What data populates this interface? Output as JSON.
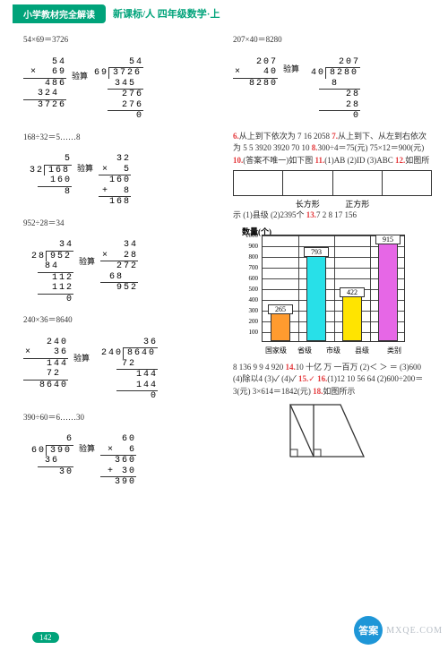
{
  "header": {
    "tab": "小学教材完全解读",
    "title": "新课标/人 四年级数学·上"
  },
  "left": {
    "p1": {
      "eq": "54×69＝3726",
      "mult": {
        "a": "54",
        "b": "69",
        "p1": "486",
        "p2": "324",
        "res": "3726"
      },
      "check_label": "验算",
      "longdiv": {
        "div": "69",
        "dvd": "3726",
        "q": "54",
        "l1": "345",
        "l2": "276",
        "l3": "276",
        "rem": "0"
      }
    },
    "p2": {
      "eq": "168÷32＝5……8",
      "longdiv": {
        "div": "32",
        "dvd": "168",
        "q": "5",
        "l1": "160",
        "rem": "8"
      },
      "check_label": "验算",
      "mult": {
        "a": "32",
        "b": "5",
        "p1": "160",
        "add": "8",
        "res": "168"
      }
    },
    "p3": {
      "eq": "952÷28＝34",
      "longdiv": {
        "div": "28",
        "dvd": "952",
        "q": "34",
        "l1": "84",
        "l2": "112",
        "l3": "112",
        "rem": "0"
      },
      "check_label": "验算",
      "mult": {
        "a": "34",
        "b": "28",
        "p1": "272",
        "p2": "68",
        "res": "952"
      }
    },
    "p4": {
      "eq": "240×36＝8640",
      "mult": {
        "a": "240",
        "b": "36",
        "p1": "144",
        "p2": "72",
        "res": "8640"
      },
      "check_label": "验算",
      "longdiv": {
        "div": "240",
        "dvd": "8640",
        "q": "36",
        "l1": "72",
        "l2": "144",
        "rem": "0"
      }
    },
    "p5": {
      "eq": "390÷60＝6……30",
      "longdiv": {
        "div": "60",
        "dvd": "390",
        "q": "6",
        "l1": "36",
        "rem": "30"
      },
      "check_label": "验算",
      "mult": {
        "a": "60",
        "b": "6",
        "p1": "360",
        "add": "30",
        "res": "390"
      }
    }
  },
  "right": {
    "p1": {
      "eq": "207×40＝8280",
      "mult": {
        "a": "207",
        "b": "40",
        "res": "8280"
      },
      "check_label": "验算",
      "longdiv": {
        "div": "40",
        "dvd": "8280",
        "q": "207",
        "l1": "8",
        "l2": "28",
        "l3": "28",
        "rem": "0"
      }
    },
    "answers1": {
      "n6": "6.",
      "t6": "从上到下依次为 7 16 2058 ",
      "n7": "7.",
      "t7": "从上到下、从左到右依次为 5 5 3920 3920 70 10 ",
      "n8": "8.",
      "t8": "300÷4＝75(元) 75×12＝900(元) ",
      "n10": "10.",
      "t10": "(答案不唯一)如下图 ",
      "n11": "11.",
      "t11": "(1)AB (2)ID (3)ABC ",
      "n12": "12.",
      "t12": "如图所"
    },
    "shape_labels": {
      "a": "长方形",
      "b": "正方形"
    },
    "answers2": {
      "prefix": "示 (1)县级 (2)2395个 ",
      "n13": "13.",
      "t13": "7 2 8 17 156"
    },
    "chart": {
      "title": "数量(个)",
      "ymax": 1000,
      "ystep": 100,
      "ytick_labels": [
        "100",
        "200",
        "300",
        "400",
        "500",
        "600",
        "700",
        "800",
        "900",
        "1000"
      ],
      "categories": [
        "国家级",
        "省级",
        "市级",
        "县级"
      ],
      "xlast": "类别",
      "series": [
        {
          "label": "265",
          "value": 265,
          "color": "#ff9b2f"
        },
        {
          "label": "793",
          "value": 793,
          "color": "#28e0e8"
        },
        {
          "label": "422",
          "value": 422,
          "color": "#ffe400"
        },
        {
          "label": "915",
          "value": 915,
          "color": "#e667e6"
        }
      ],
      "grid_color": "#333",
      "bg": "#ffffff"
    },
    "answers3": {
      "t_a": "8 136 9 9 4 920 ",
      "n14": "14.",
      "t14": "10 十亿 万 一百万 (2)＜ ＞ ＝ (3)600 (4)除以4 (3)✓ (4)✓ ",
      "n15": "15.",
      "t15": "✓ ",
      "n16": "16.",
      "t16": "(1)12 10 56 64 (2)600÷200＝3(元) 3×614＝1842(元) ",
      "n18": "18.",
      "t18": "如图所示"
    }
  },
  "footer": {
    "page": "142",
    "wm_badge": "答案",
    "wm_text": "MXQE.COM"
  }
}
